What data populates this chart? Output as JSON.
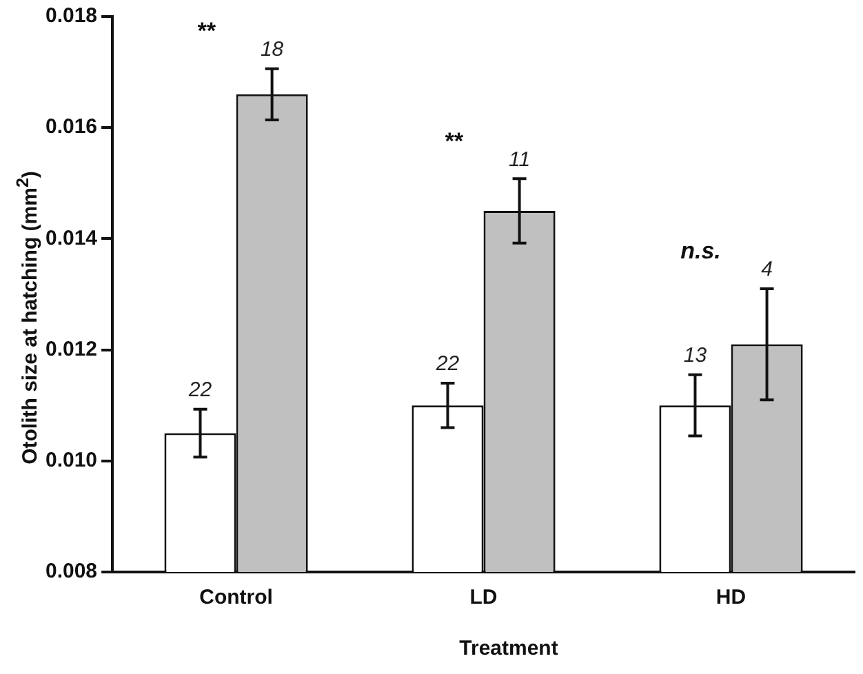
{
  "chart_data": {
    "type": "bar",
    "xlabel": "Treatment",
    "ylabel": "Otolith size at hatching (mm$^{2}$)",
    "categories": [
      "Control",
      "LD",
      "HD"
    ],
    "series": [
      {
        "color": "#ffffff",
        "values": [
          0.0105,
          0.011,
          0.011
        ],
        "errors": [
          0.00043,
          0.0004,
          0.00055
        ]
      },
      {
        "color": "#c0c0c0",
        "values": [
          0.0166,
          0.0145,
          0.0121
        ],
        "errors": [
          0.00046,
          0.00058,
          0.001
        ]
      }
    ],
    "ylim": [
      0.008,
      0.018
    ],
    "yticks": [
      {
        "value": 0.008,
        "label": "0.008"
      },
      {
        "value": 0.01,
        "label": "0.010"
      },
      {
        "value": 0.012,
        "label": "0.012"
      },
      {
        "value": 0.014,
        "label": "0.014"
      },
      {
        "value": 0.016,
        "label": "0.016"
      },
      {
        "value": 0.018,
        "label": "0.018"
      }
    ],
    "annotations": [
      "**",
      "**",
      "n.s.",
      "22",
      "18",
      "22",
      "11",
      "13",
      "4"
    ],
    "grid": false,
    "legend": false
  }
}
